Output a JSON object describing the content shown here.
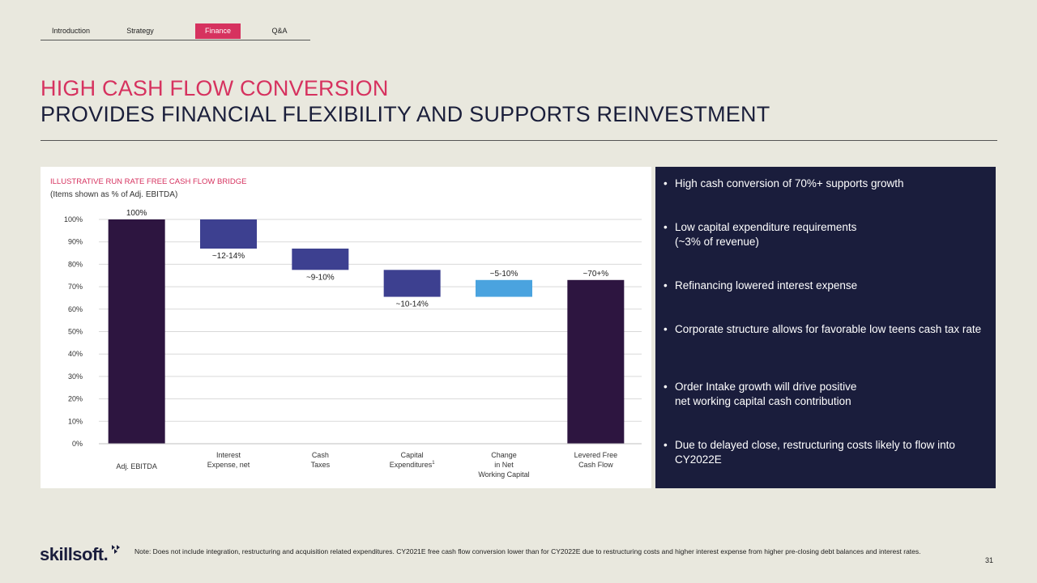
{
  "nav": {
    "tabs": [
      "Introduction",
      "Strategy",
      "Finance",
      "Q&A"
    ],
    "active": "Finance"
  },
  "title": {
    "line1": "HIGH CASH FLOW CONVERSION",
    "line2": "PROVIDES FINANCIAL FLEXIBILITY AND SUPPORTS REINVESTMENT"
  },
  "colors": {
    "accent": "#d6325f",
    "navy": "#1a1d3c",
    "total_bar": "#2d1540",
    "step_bar": "#3d4090",
    "positive_bar": "#4aa3df"
  },
  "chart_data": {
    "type": "bar",
    "subtype": "waterfall",
    "title": "ILLUSTRATIVE RUN RATE FREE CASH FLOW BRIDGE",
    "subtitle": "(Items shown as % of Adj. EBITDA)",
    "categories": [
      [
        "Adj. EBITDA"
      ],
      [
        "Interest",
        "Expense, net"
      ],
      [
        "Cash",
        "Taxes"
      ],
      [
        "Capital",
        "Expenditures"
      ],
      [
        "Change",
        "in Net",
        "Working Capital"
      ],
      [
        "Levered Free",
        "Cash Flow"
      ]
    ],
    "footnote_marker": "1",
    "bars": [
      {
        "kind": "total",
        "low": 0,
        "high": 100,
        "label": "100%"
      },
      {
        "kind": "decrease",
        "low": 87,
        "high": 100,
        "label": "~12-14%"
      },
      {
        "kind": "decrease",
        "low": 77.5,
        "high": 87,
        "label": "~9-10%"
      },
      {
        "kind": "decrease",
        "low": 65.5,
        "high": 77.5,
        "label": "~10-14%"
      },
      {
        "kind": "increase",
        "low": 65.5,
        "high": 73,
        "label": "~5-10%"
      },
      {
        "kind": "total",
        "low": 0,
        "high": 73,
        "label": "~70+%"
      }
    ],
    "ylim": [
      0,
      100
    ],
    "yticks": [
      0,
      10,
      20,
      30,
      40,
      50,
      60,
      70,
      80,
      90,
      100
    ],
    "ytick_labels": [
      "0%",
      "10%",
      "20%",
      "30%",
      "40%",
      "50%",
      "60%",
      "70%",
      "80%",
      "90%",
      "100%"
    ],
    "grid": true
  },
  "bullets": [
    "High cash conversion of 70%+ supports growth",
    "Low capital expenditure requirements\n(~3% of revenue)",
    "Refinancing lowered interest expense",
    "Corporate structure allows for favorable low teens cash tax rate",
    "Order Intake growth will drive positive\nnet working capital cash contribution",
    "Due to delayed close, restructuring costs likely to flow into CY2022E"
  ],
  "bullet_char": "•",
  "logo": "skillsoft.",
  "note": "Note: Does not include integration, restructuring and acquisition related expenditures.  CY2021E free cash flow conversion lower than for CY2022E due to restructuring costs and higher interest expense from higher pre-closing debt balances and interest rates.",
  "page_number": "31"
}
